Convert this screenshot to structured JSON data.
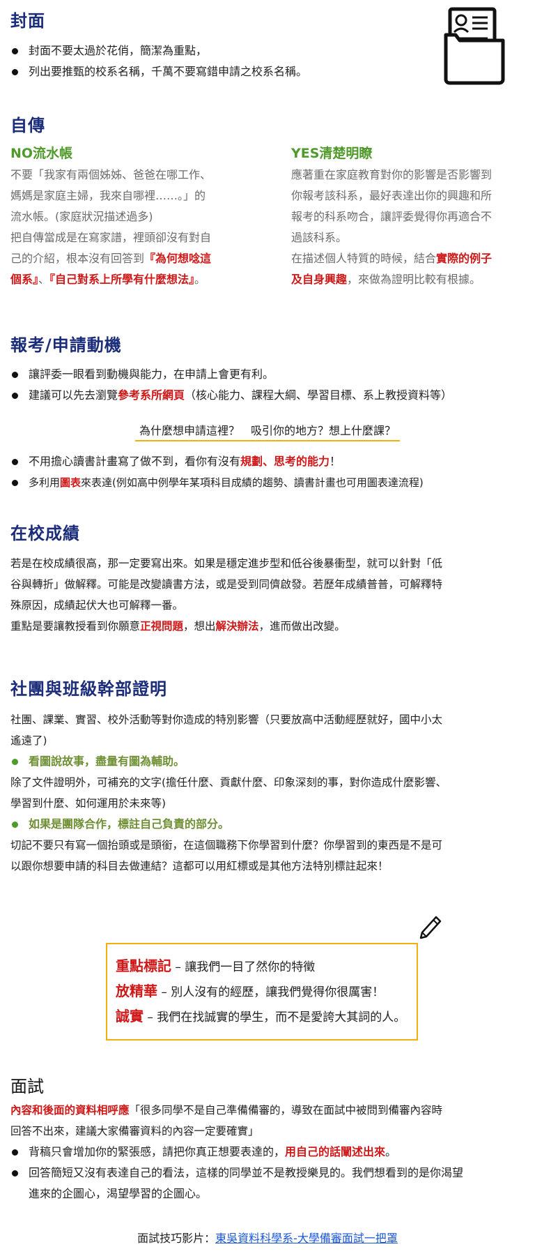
{
  "cover": {
    "title": "封面",
    "bullets": [
      "封面不要太過於花俏，簡潔為重點，",
      "列出要推甄的校系名稱，千萬不要寫錯申請之校系名稱。"
    ],
    "icon": "folder-document-icon"
  },
  "autobio": {
    "title": "自傳",
    "left_head": "NO流水帳",
    "left_lines": [
      "不要「我家有兩個姊姊、爸爸在哪工作、",
      "媽媽是家庭主婦，我來自哪裡……。」的",
      "流水帳。(家庭狀況描述過多)",
      "把自傳當成是在寫家譜，裡頭卻沒有對自",
      "己的介紹，根本沒有回答到"
    ],
    "left_red1": "『為何想唸這",
    "left_red2": "個系』",
    "left_sep": "、",
    "left_red3": "『自己對系上所學有什麼想法』",
    "left_end": "。",
    "right_head": "YES清楚明瞭",
    "right_lines": [
      "應著重在家庭教育對你的影響是否影響到",
      "你報考該科系，最好表達出你的興趣和所",
      "報考的科系吻合，讓評委覺得你再適合不",
      "過該科系。"
    ],
    "right_l5": "在描述個人特質的時候，結合",
    "right_red1": "實際的例子",
    "right_red2": "及自身興趣",
    "right_l6": "，來做為證明比較有根據。"
  },
  "motivation": {
    "title": "報考/申請動機",
    "b1": "讓評委一眼看到動機與能力，在申請上會更有利。",
    "b2_pre": "建議可以先去瀏覽",
    "b2_red": "參考系所網頁",
    "b2_post": "（核心能力、課程大綱、學習目標、系上教授資料等）",
    "question": "為什麼想申請這裡？　吸引你的地方？想上什麼課？",
    "b3_pre": "不用擔心讀書計畫寫了做不到，看你有沒有",
    "b3_red": "規劃、思考的能力",
    "b3_post": "！",
    "b4_pre": "多利用",
    "b4_red": "圖表",
    "b4_post": "來表達(例如高中例學年某項科目成績的趨勢、讀書計畫也可用圖表達流程)"
  },
  "grades": {
    "title": "在校成績",
    "lines": [
      "若是在校成績很高，那一定要寫出來。如果是穩定進步型和低谷後暴衝型，就可以針對「低",
      "谷與轉折」做解釋。可能是改變讀書方法，或是受到同儕啟發。若歷年成績普普，可解釋特",
      "殊原因，成績起伏大也可解釋一番。"
    ],
    "l4_pre": "重點是要讓教授看到你願意",
    "l4_red1": "正視問題",
    "l4_mid": "，想出",
    "l4_red2": "解決辦法",
    "l4_post": "，進而做出改變。"
  },
  "clubs": {
    "title": "社團與班級幹部證明",
    "p1": [
      "社團、課業、實習、校外活動等對你造成的特別影響（只要放高中活動經歷就好，國中小太",
      "遙遠了)"
    ],
    "g1": "看圖說故事，盡量有圖為輔助。",
    "p2": [
      "除了文件證明外，可補充的文字(擔任什麼、貢獻什麼、印象深刻的事，對你造成什麼影響、",
      "學習到什麼、如何運用於未來等)"
    ],
    "g2": "如果是團隊合作，標註自己負責的部分。",
    "p3": [
      "切記不要只有寫一個抬頭或是頭銜，在這個職務下你學習到什麼？你學習到的東西是不是可",
      "以跟你想要申請的科目去做連結？這都可以用紅標或是其他方法特別標註起來！"
    ]
  },
  "tips": {
    "icon": "pencil-icon",
    "items": [
      {
        "key": "重點標記",
        "text": " – 讓我們一目了然你的特徵"
      },
      {
        "key": "放精華",
        "text": " – 別人沒有的經歷，讓我們覺得你很厲害！"
      },
      {
        "key": "誠實",
        "text": " – 我們在找誠實的學生，而不是愛誇大其詞的人。"
      }
    ]
  },
  "interview": {
    "title": "面試",
    "l1_red": "內容和後面的資料相呼應",
    "l1_post": "「很多同學不是自己準備備審的，導致在面試中被問到備審內容時",
    "l2": "回答不出來，建議大家備審資料的內容一定要確實」",
    "b1_pre": "背稿只會增加你的緊張感，請把你真正想要表達的，",
    "b1_red": "用自己的話闡述出來",
    "b1_post": "。",
    "b2_l1": "回答簡短又沒有表達自己的看法，這樣的同學並不是教授樂見的。我們想看到的是你渴望",
    "b2_l2": "進來的企圖心，渴望學習的企圖心。",
    "video_label": "面試技巧影片：",
    "video_link": "東吳資料科學系-大學備審面試一把罩"
  }
}
